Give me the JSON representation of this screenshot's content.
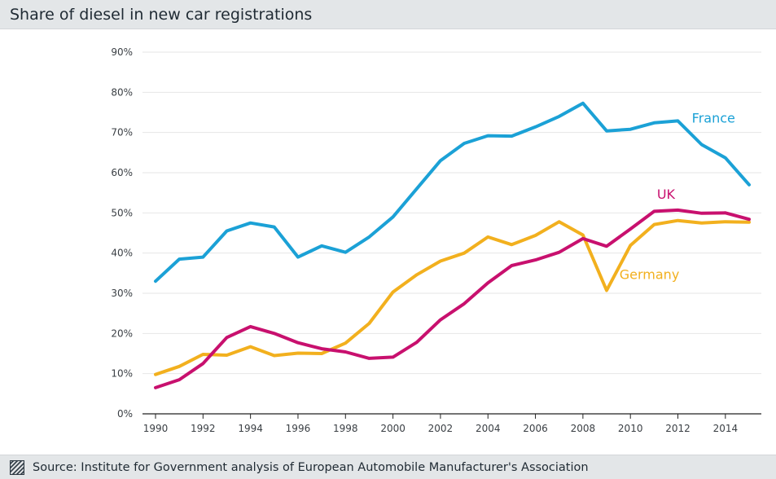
{
  "header": {
    "title": "Share of diesel in new car registrations"
  },
  "footer": {
    "icon": "hatched-square-icon",
    "source": "Source: Institute for Government analysis of European Automobile Manufacturer's Association"
  },
  "colors": {
    "France": "#1ba1d6",
    "UK": "#c8106e",
    "Germany": "#f2b01e",
    "grid": "#e6e6e6",
    "axis": "#222222"
  },
  "chart_data": {
    "type": "line",
    "title": "Share of diesel in new car registrations",
    "xlabel": "",
    "ylabel": "",
    "xlim": [
      1990,
      2015
    ],
    "ylim": [
      0,
      90
    ],
    "x_ticks": [
      "1990",
      "1992",
      "1994",
      "1996",
      "1998",
      "2000",
      "2002",
      "2004",
      "2006",
      "2008",
      "2010",
      "2012",
      "2014"
    ],
    "y_ticks": [
      "0%",
      "10%",
      "20%",
      "30%",
      "40%",
      "50%",
      "60%",
      "70%",
      "80%",
      "90%"
    ],
    "grid": "horizontal",
    "x": [
      1990,
      1991,
      1992,
      1993,
      1994,
      1995,
      1996,
      1997,
      1998,
      1999,
      2000,
      2001,
      2002,
      2003,
      2004,
      2005,
      2006,
      2007,
      2008,
      2009,
      2010,
      2011,
      2012,
      2013,
      2014,
      2015
    ],
    "series": [
      {
        "name": "France",
        "values": [
          33,
          38.5,
          39,
          45.5,
          47.5,
          46.5,
          39,
          41.8,
          40.2,
          44,
          49,
          56,
          63,
          67.3,
          69.2,
          69.1,
          71.4,
          74,
          77.3,
          70.4,
          70.8,
          72.4,
          72.9,
          67,
          63.7,
          57
        ]
      },
      {
        "name": "UK",
        "values": [
          6.5,
          8.5,
          12.5,
          19,
          21.7,
          20,
          17.7,
          16.2,
          15.4,
          13.8,
          14.1,
          17.8,
          23.4,
          27.4,
          32.6,
          36.9,
          38.3,
          40.2,
          43.6,
          41.7,
          46,
          50.4,
          50.7,
          49.9,
          50,
          48.4
        ]
      },
      {
        "name": "Germany",
        "values": [
          9.8,
          11.8,
          14.8,
          14.6,
          16.7,
          14.5,
          15.1,
          15,
          17.6,
          22.5,
          30.3,
          34.6,
          38,
          40,
          44,
          42.1,
          44.4,
          47.8,
          44.5,
          30.7,
          41.9,
          47.1,
          48.1,
          47.5,
          47.8,
          47.7
        ]
      }
    ]
  }
}
